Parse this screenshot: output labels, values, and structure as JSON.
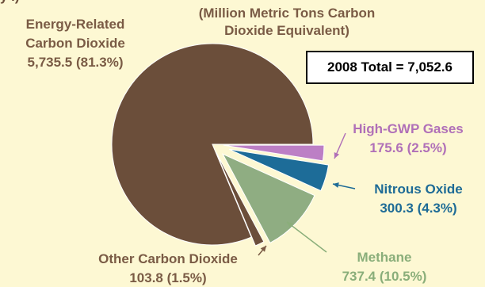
{
  "header": {
    "fragment": "y .)",
    "units_line1": "(Million Metric Tons Carbon",
    "units_line2": "Dioxide Equivalent)"
  },
  "total_box": {
    "text": "2008 Total = 7,052.6"
  },
  "colors": {
    "background": "#FDF8D3",
    "energy": "#6B4E3A",
    "other_co2": "#6B4E3A",
    "methane": "#8FAD82",
    "nitrous": "#1D6C98",
    "hgwp": "#BC7FC5",
    "label_brown": "#7A5B45",
    "label_green": "#8AAE7A",
    "label_blue": "#1E6B96",
    "label_purple": "#B070B8"
  },
  "chart_data": {
    "type": "pie",
    "total": 7052.6,
    "slices": [
      {
        "key": "energy",
        "name": "Energy-Related Carbon Dioxide",
        "value": 5735.5,
        "percent": 81.3,
        "label_line1": "Energy-Related",
        "label_line2": "Carbon Dioxide",
        "label_value": "5,735.5 (81.3%)"
      },
      {
        "key": "hgwp",
        "name": "High-GWP Gases",
        "value": 175.6,
        "percent": 2.5,
        "label_line1": "High-GWP Gases",
        "label_value": "175.6 (2.5%)"
      },
      {
        "key": "nitrous",
        "name": "Nitrous Oxide",
        "value": 300.3,
        "percent": 4.3,
        "label_line1": "Nitrous Oxide",
        "label_value": "300.3 (4.3%)"
      },
      {
        "key": "methane",
        "name": "Methane",
        "value": 737.4,
        "percent": 10.5,
        "label_line1": "Methane",
        "label_value": "737.4 (10.5%)"
      },
      {
        "key": "other_co2",
        "name": "Other Carbon Dioxide",
        "value": 103.8,
        "percent": 1.5,
        "label_line1": "Other Carbon Dioxide",
        "label_value": "103.8 (1.5%)"
      }
    ]
  }
}
